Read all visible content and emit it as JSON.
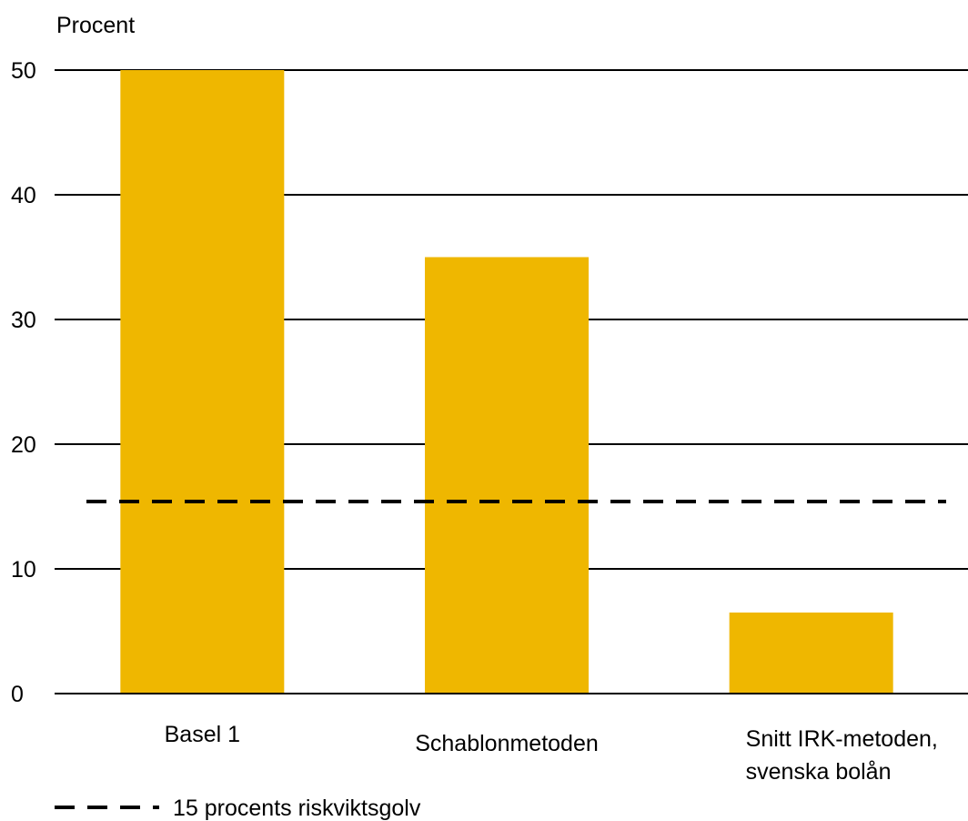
{
  "chart_data": {
    "type": "bar",
    "ylabel": "Procent",
    "ylim": [
      0,
      50
    ],
    "yticks": [
      0,
      10,
      20,
      30,
      40,
      50
    ],
    "grid": true,
    "categories": [
      [
        "Basel 1"
      ],
      [
        "Schablonmetoden"
      ],
      [
        "Snitt IRK-metoden,",
        "svenska bolån"
      ]
    ],
    "values": [
      50,
      35,
      6.5
    ],
    "bar_color": "#EFB700",
    "reference_line": {
      "value": 15.4,
      "label": "15 procents riskviktsgolv",
      "style": "dashed",
      "color": "#000000"
    },
    "legend_position": "bottom-left"
  }
}
